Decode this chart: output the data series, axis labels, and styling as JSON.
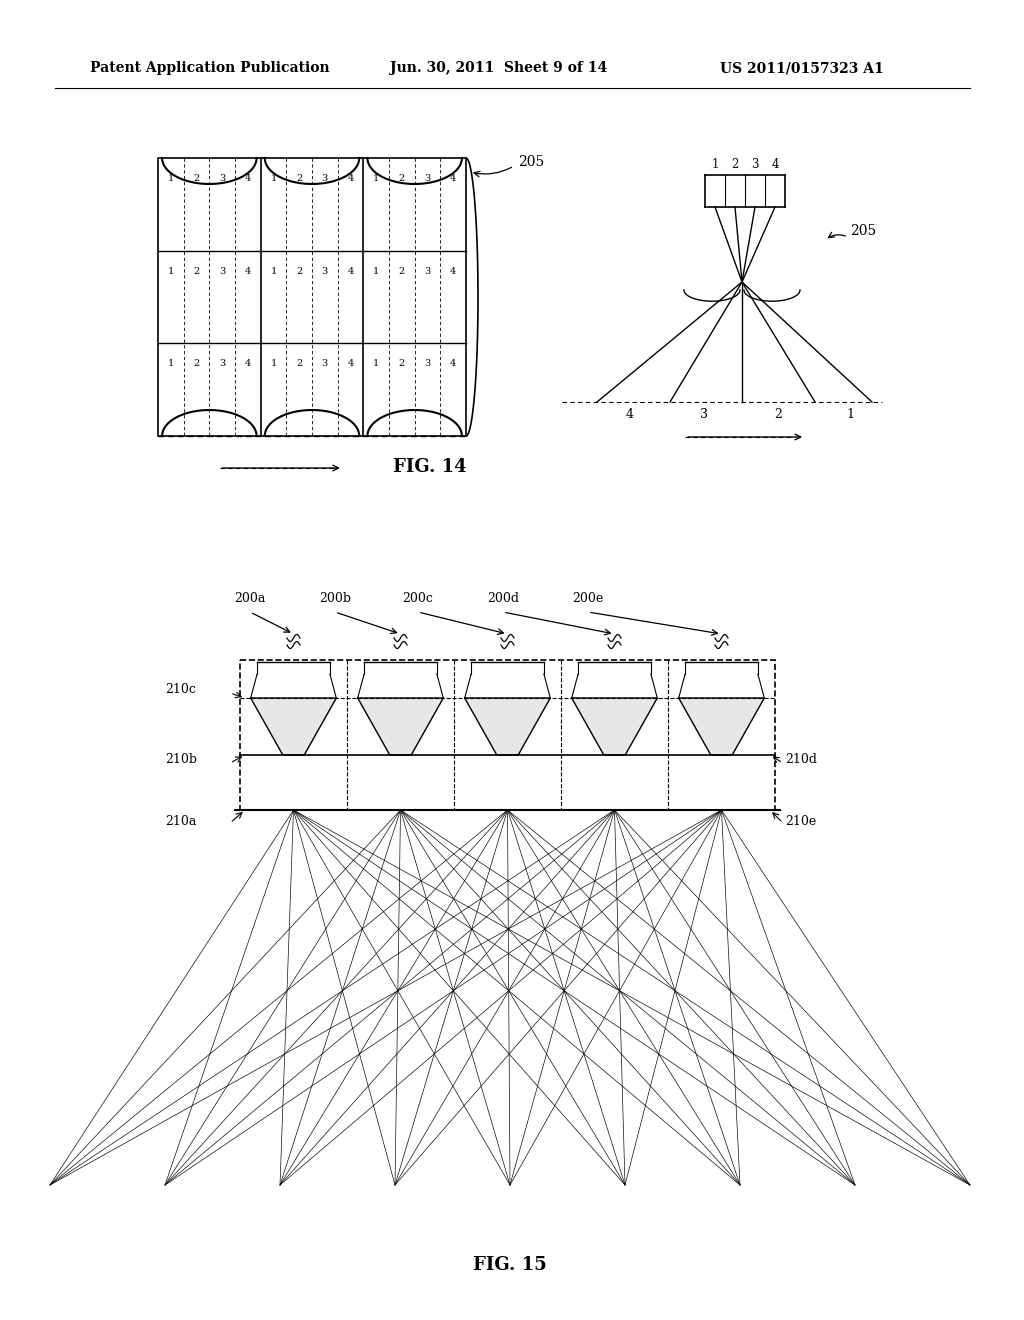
{
  "bg_color": "#ffffff",
  "text_color": "#000000",
  "header_left": "Patent Application Publication",
  "header_center": "Jun. 30, 2011  Sheet 9 of 14",
  "header_right": "US 2011/0157323 A1",
  "fig14_label": "FIG. 14",
  "fig15_label": "FIG. 15",
  "label_205": "205",
  "label_200a": "200a",
  "label_200b": "200b",
  "label_200c": "200c",
  "label_200d": "200d",
  "label_200e": "200e",
  "label_210a": "210a",
  "label_210b": "210b",
  "label_210c": "210c",
  "label_210d": "210d",
  "label_210e": "210e"
}
